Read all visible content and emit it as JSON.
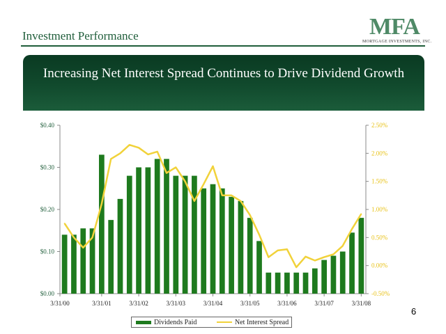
{
  "header": {
    "title": "Investment Performance",
    "logo_text": "MFA",
    "logo_subtitle": "MORTGAGE INVESTMENTS, INC."
  },
  "banner": {
    "title": "Increasing Net Interest Spread Continues to Drive Dividend Growth"
  },
  "page_number": "6",
  "colors": {
    "bar": "#1e7a1e",
    "line": "#f1d23a",
    "left_axis_text": "#1f5d3a",
    "right_axis_text": "#e8c21a",
    "banner": "#0f4a2c"
  },
  "chart_data": {
    "type": "bar",
    "title": "",
    "xlabel": "",
    "ylabel": "",
    "grid": false,
    "legend_position": "bottom",
    "x_tick_labels": [
      "3/31/00",
      "3/31/01",
      "3/31/02",
      "3/31/03",
      "3/31/04",
      "3/31/05",
      "3/31/06",
      "3/31/07",
      "3/31/08"
    ],
    "y_left": {
      "range": [
        0,
        0.4
      ],
      "ticks": [
        0,
        0.1,
        0.2,
        0.3,
        0.4
      ],
      "tick_labels": [
        "$0.00",
        "$0.10",
        "$0.20",
        "$0.30",
        "$0.40"
      ]
    },
    "y_right": {
      "range": [
        -0.5,
        2.5
      ],
      "ticks": [
        -0.5,
        0,
        0.5,
        1.0,
        1.5,
        2.0,
        2.5
      ],
      "tick_labels": [
        "-0.50%",
        "0.00%",
        "0.50%",
        "1.00%",
        "1.50%",
        "2.00%",
        "2.50%"
      ]
    },
    "num_periods": 33,
    "series": [
      {
        "name": "Dividends Paid",
        "type": "bar",
        "axis": "left",
        "values": [
          0.14,
          0.14,
          0.155,
          0.155,
          0.33,
          0.175,
          0.225,
          0.28,
          0.3,
          0.3,
          0.32,
          0.32,
          0.28,
          0.28,
          0.28,
          0.25,
          0.26,
          0.25,
          0.23,
          0.22,
          0.18,
          0.125,
          0.05,
          0.05,
          0.05,
          0.05,
          0.05,
          0.06,
          0.08,
          0.09,
          0.1,
          0.145,
          0.18
        ]
      },
      {
        "name": "Net Interest Spread",
        "type": "line",
        "axis": "right",
        "values": [
          0.75,
          0.5,
          0.32,
          0.5,
          1.1,
          1.9,
          2.0,
          2.15,
          2.1,
          1.98,
          2.03,
          1.65,
          1.75,
          1.5,
          1.15,
          1.45,
          1.77,
          1.25,
          1.25,
          1.15,
          0.9,
          0.55,
          0.15,
          0.27,
          0.29,
          -0.03,
          0.16,
          0.09,
          0.15,
          0.2,
          0.35,
          0.65,
          0.92
        ]
      }
    ]
  }
}
